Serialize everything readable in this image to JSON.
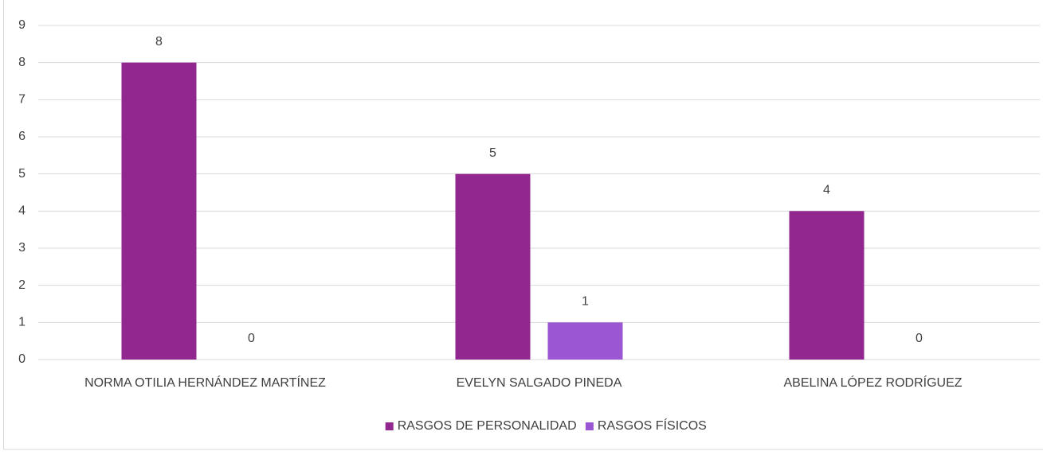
{
  "chart_data": {
    "type": "bar",
    "categories": [
      "NORMA OTILIA HERNÁNDEZ MARTÍNEZ",
      "EVELYN SALGADO PINEDA",
      "ABELINA LÓPEZ RODRÍGUEZ"
    ],
    "series": [
      {
        "name": "RASGOS DE PERSONALIDAD",
        "color": "#92278f",
        "values": [
          8,
          5,
          4
        ]
      },
      {
        "name": "RASGOS FÍSICOS",
        "color": "#9b57d3",
        "values": [
          0,
          1,
          0
        ]
      }
    ],
    "ylim": [
      0,
      9
    ],
    "yticks": [
      0,
      1,
      2,
      3,
      4,
      5,
      6,
      7,
      8,
      9
    ],
    "grid": true,
    "legend": "bottom",
    "data_labels": true
  }
}
